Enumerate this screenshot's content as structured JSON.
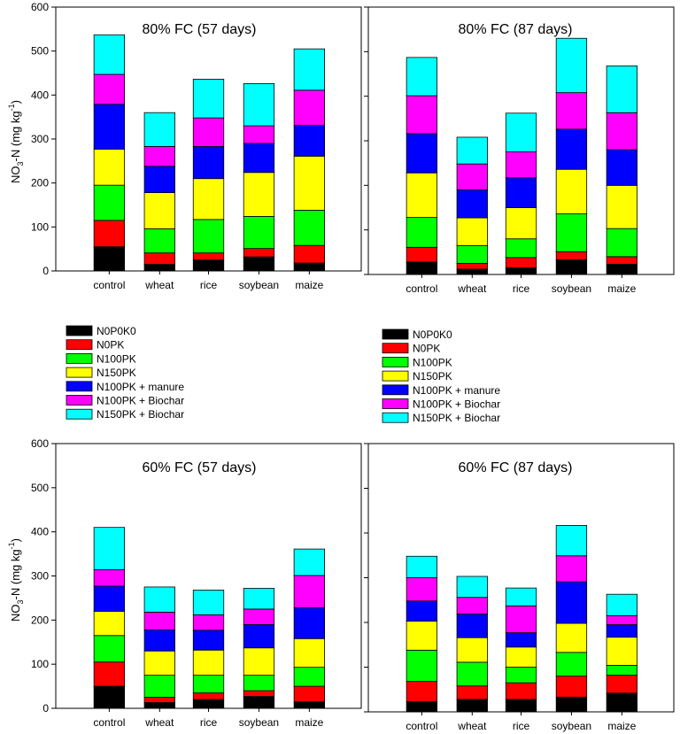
{
  "figure": {
    "y_axis_label": "NO",
    "y_axis_label_sub": "3",
    "y_axis_label_rest": "-N (mg kg",
    "y_axis_label_sup": "-1",
    "y_axis_label_close": ")"
  },
  "legend": {
    "entries": [
      "N0P0K0",
      "N0PK",
      "N100PK",
      "N150PK",
      "N100PK + manure",
      "N100PK + Biochar",
      "N150PK + Biochar"
    ],
    "colors": [
      "#000000",
      "#ff0000",
      "#00ff00",
      "#ffff00",
      "#0000ff",
      "#ff00ff",
      "#00ffff"
    ]
  },
  "chart_data": [
    {
      "type": "bar",
      "stacked": true,
      "title": "80% FC (57 days)",
      "categories": [
        "control",
        "wheat",
        "rice",
        "soybean",
        "maize"
      ],
      "ylim": [
        0,
        600
      ],
      "yticks": [
        0,
        100,
        200,
        300,
        400,
        500,
        600
      ],
      "series": [
        {
          "name": "N0P0K0",
          "values": [
            55,
            15,
            25,
            32,
            18
          ]
        },
        {
          "name": "N0PK",
          "values": [
            60,
            26,
            16,
            19,
            40
          ]
        },
        {
          "name": "N100PK",
          "values": [
            80,
            55,
            76,
            73,
            80
          ]
        },
        {
          "name": "N150PK",
          "values": [
            82,
            82,
            93,
            100,
            123
          ]
        },
        {
          "name": "N100PK + manure",
          "values": [
            102,
            60,
            73,
            66,
            70
          ]
        },
        {
          "name": "N100PK + Biochar",
          "values": [
            68,
            45,
            65,
            40,
            80
          ]
        },
        {
          "name": "N150PK + Biochar",
          "values": [
            90,
            77,
            88,
            96,
            94
          ]
        }
      ]
    },
    {
      "type": "bar",
      "stacked": true,
      "title": "80% FC (87 days)",
      "categories": [
        "control",
        "wheat",
        "rice",
        "soybean",
        "maize"
      ],
      "ylim": [
        0,
        600
      ],
      "yticks": [
        0,
        100,
        200,
        300,
        400,
        500,
        600
      ],
      "series": [
        {
          "name": "N0P0K0",
          "values": [
            28,
            12,
            15,
            33,
            23
          ]
        },
        {
          "name": "N0PK",
          "values": [
            33,
            13,
            23,
            18,
            17
          ]
        },
        {
          "name": "N100PK",
          "values": [
            67,
            40,
            42,
            85,
            63
          ]
        },
        {
          "name": "N150PK",
          "values": [
            100,
            62,
            70,
            100,
            97
          ]
        },
        {
          "name": "N100PK + manure",
          "values": [
            88,
            63,
            67,
            90,
            80
          ]
        },
        {
          "name": "N100PK + Biochar",
          "values": [
            85,
            58,
            58,
            82,
            83
          ]
        },
        {
          "name": "N150PK + Biochar",
          "values": [
            86,
            60,
            87,
            122,
            105
          ]
        }
      ]
    },
    {
      "type": "bar",
      "stacked": true,
      "title": "60% FC (57 days)",
      "categories": [
        "control",
        "wheat",
        "rice",
        "soybean",
        "maize"
      ],
      "ylim": [
        0,
        600
      ],
      "yticks": [
        0,
        100,
        200,
        300,
        400,
        500,
        600
      ],
      "series": [
        {
          "name": "N0P0K0",
          "values": [
            50,
            13,
            20,
            27,
            15
          ]
        },
        {
          "name": "N0PK",
          "values": [
            55,
            12,
            15,
            13,
            35
          ]
        },
        {
          "name": "N100PK",
          "values": [
            60,
            50,
            40,
            35,
            43
          ]
        },
        {
          "name": "N150PK",
          "values": [
            55,
            55,
            57,
            62,
            65
          ]
        },
        {
          "name": "N100PK + manure",
          "values": [
            57,
            48,
            45,
            53,
            70
          ]
        },
        {
          "name": "N100PK + Biochar",
          "values": [
            37,
            40,
            35,
            35,
            73
          ]
        },
        {
          "name": "N150PK + Biochar",
          "values": [
            96,
            57,
            56,
            47,
            60
          ]
        }
      ]
    },
    {
      "type": "bar",
      "stacked": true,
      "title": "60% FC (87 days)",
      "categories": [
        "control",
        "wheat",
        "rice",
        "soybean",
        "maize"
      ],
      "ylim": [
        0,
        600
      ],
      "yticks": [
        0,
        100,
        200,
        300,
        400,
        500,
        600
      ],
      "series": [
        {
          "name": "N0P0K0",
          "values": [
            23,
            28,
            28,
            33,
            42
          ]
        },
        {
          "name": "N0PK",
          "values": [
            45,
            30,
            37,
            47,
            40
          ]
        },
        {
          "name": "N100PK",
          "values": [
            70,
            53,
            35,
            53,
            22
          ]
        },
        {
          "name": "N150PK",
          "values": [
            65,
            55,
            45,
            65,
            63
          ]
        },
        {
          "name": "N100PK + manure",
          "values": [
            45,
            53,
            32,
            93,
            28
          ]
        },
        {
          "name": "N100PK + Biochar",
          "values": [
            52,
            37,
            60,
            58,
            20
          ]
        },
        {
          "name": "N150PK + Biochar",
          "values": [
            48,
            47,
            40,
            68,
            48
          ]
        }
      ]
    }
  ]
}
